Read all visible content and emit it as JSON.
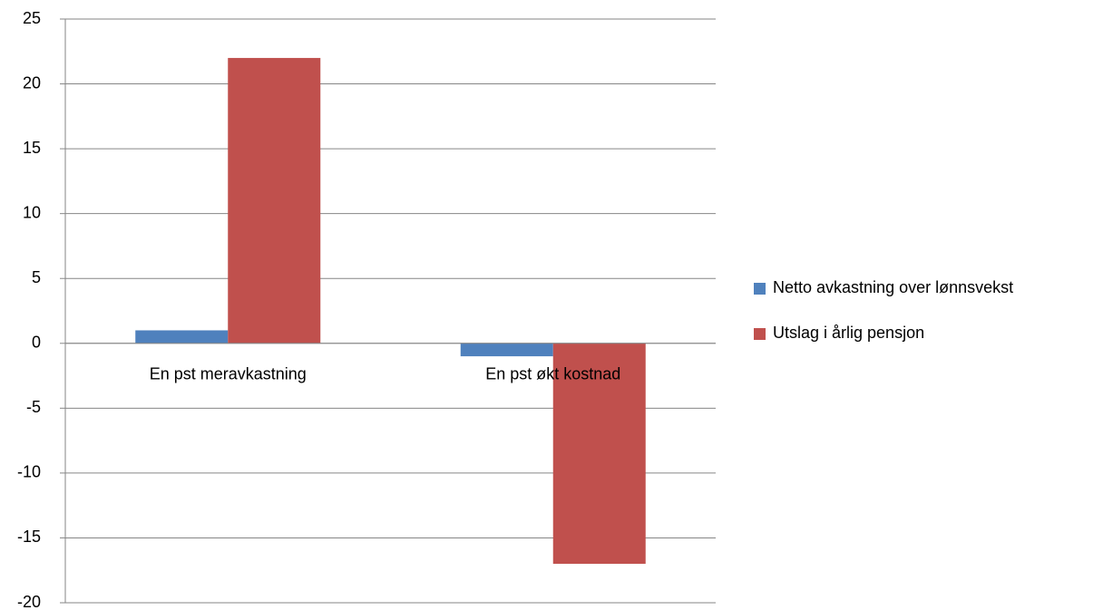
{
  "chart_data": {
    "type": "bar",
    "categories": [
      "En pst meravkastning",
      "En pst økt kostnad"
    ],
    "series": [
      {
        "name": "Netto avkastning over lønnsvekst",
        "color": "#4f81bd",
        "values": [
          1,
          -1
        ]
      },
      {
        "name": "Utslag i årlig pensjon",
        "color": "#c0504d",
        "values": [
          22,
          -17
        ]
      }
    ],
    "ylim": [
      -20,
      25
    ],
    "yticks": [
      -20,
      -15,
      -10,
      -5,
      0,
      5,
      10,
      15,
      20,
      25
    ],
    "grid": true,
    "legend": "right"
  }
}
